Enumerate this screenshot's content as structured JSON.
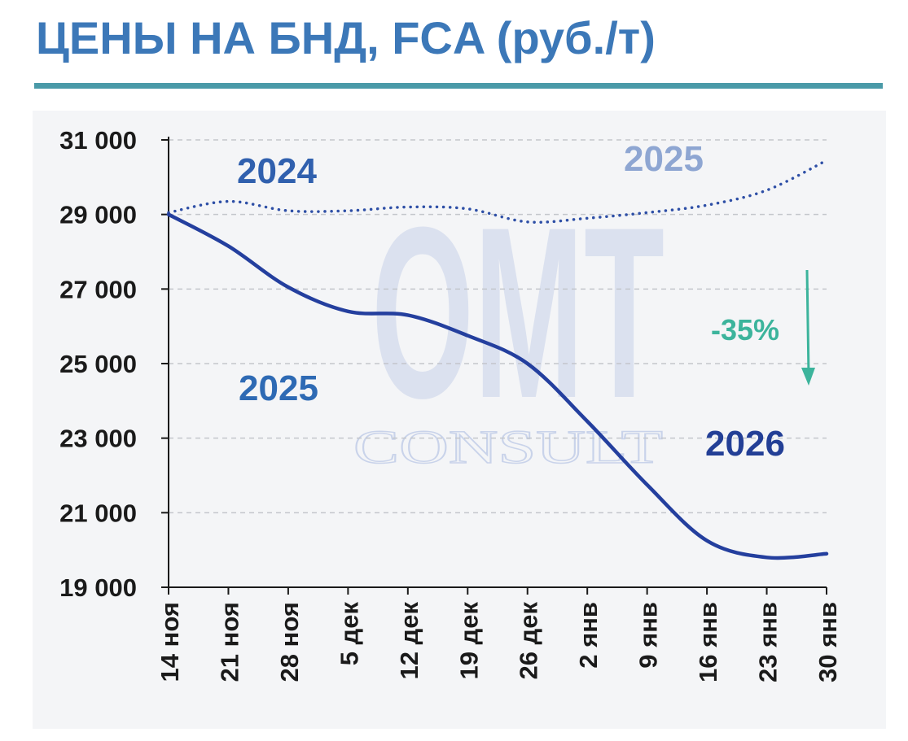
{
  "title": "ЦЕНЫ НА БНД, FCA (руб./т)",
  "chart_data": {
    "type": "line",
    "categories": [
      "14 ноя",
      "21 ноя",
      "28 ноя",
      "5 дек",
      "12 дек",
      "19 дек",
      "26 дек",
      "2 янв",
      "9 янв",
      "16 янв",
      "23 янв",
      "30 янв"
    ],
    "y_ticks": [
      19000,
      21000,
      23000,
      25000,
      27000,
      29000,
      31000
    ],
    "y_tick_labels": [
      "19 000",
      "21 000",
      "23 000",
      "25 000",
      "27 000",
      "29 000",
      "31 000"
    ],
    "ylim": [
      19000,
      31000
    ],
    "grid": "horizontal-dashed",
    "series": [
      {
        "name": "2024 / 2025",
        "style": "dotted",
        "color": "#2e4fa6",
        "values": [
          29050,
          29350,
          29100,
          29100,
          29200,
          29150,
          28800,
          28900,
          29050,
          29250,
          29650,
          30450
        ]
      },
      {
        "name": "2025 / 2026",
        "style": "solid",
        "color": "#243f9e",
        "values": [
          29000,
          28150,
          27050,
          26400,
          26300,
          25750,
          25000,
          23450,
          21750,
          20250,
          19800,
          19900
        ]
      }
    ],
    "annotations": [
      {
        "text": "2024",
        "color": "#3060ae"
      },
      {
        "text": "2025",
        "color": "#8ea6d2"
      },
      {
        "text": "2025",
        "color": "#2e6ab4"
      },
      {
        "text": "2026",
        "color": "#233f96"
      },
      {
        "text": "-35%",
        "color": "#3cb49c"
      }
    ],
    "watermark": [
      "OMT",
      "CONSULT"
    ]
  }
}
